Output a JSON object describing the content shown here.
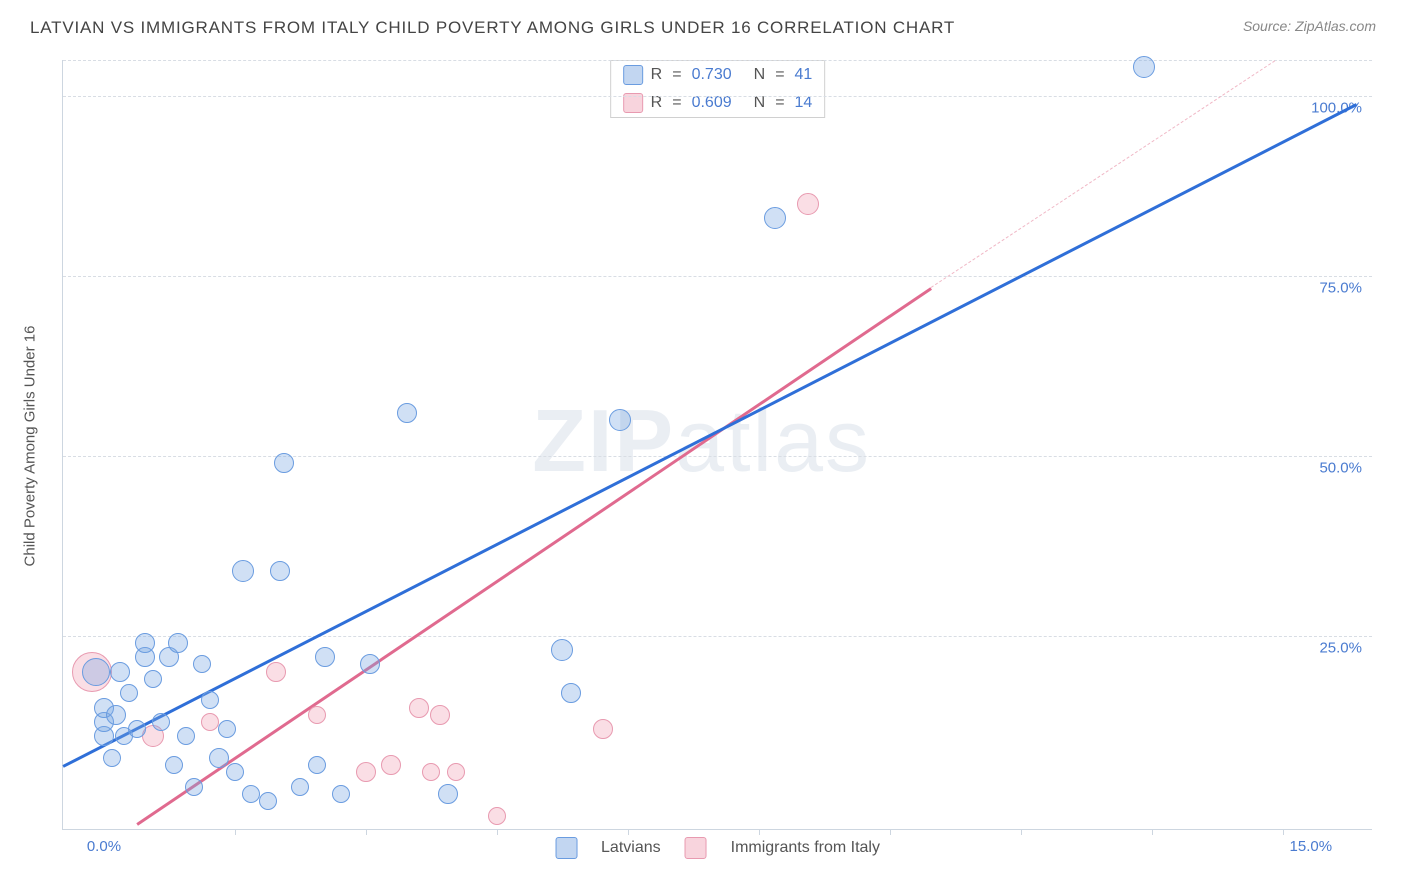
{
  "header": {
    "title": "LATVIAN VS IMMIGRANTS FROM ITALY CHILD POVERTY AMONG GIRLS UNDER 16 CORRELATION CHART",
    "source_prefix": "Source: ",
    "source_name": "ZipAtlas.com"
  },
  "chart": {
    "type": "scatter",
    "background_color": "#ffffff",
    "grid_color": "#d8dde4",
    "ylabel": "Child Poverty Among Girls Under 16",
    "ylabel_fontsize": 15,
    "label_color": "#555555",
    "tick_color": "#4a7bd0",
    "tick_fontsize": 15,
    "yticks": [
      {
        "value": 25.0,
        "label": "25.0%"
      },
      {
        "value": 50.0,
        "label": "50.0%"
      },
      {
        "value": 75.0,
        "label": "75.0%"
      },
      {
        "value": 100.0,
        "label": "100.0%"
      }
    ],
    "ylim": [
      -2,
      105
    ],
    "xticks": [
      {
        "value": 0.0,
        "label": "0.0%"
      },
      {
        "value": 15.0,
        "label": "15.0%"
      }
    ],
    "xtick_marks": [
      1.6,
      3.2,
      4.8,
      6.4,
      8.0,
      9.6,
      11.2,
      12.8,
      14.4
    ],
    "xlim": [
      -0.5,
      15.5
    ],
    "series": [
      {
        "name": "Latvians",
        "color_fill": "rgba(120,165,225,0.35)",
        "color_stroke": "#6a9ce0",
        "marker_radius_default": 9,
        "R": "0.730",
        "N": "41",
        "regression": {
          "x0": -0.5,
          "y0": 7,
          "x1": 15.3,
          "y1": 99,
          "color": "#2f6fd8",
          "width": 2.5,
          "dash": false
        },
        "points": [
          {
            "x": 0.0,
            "y": 11,
            "r": 10
          },
          {
            "x": 0.0,
            "y": 13,
            "r": 10
          },
          {
            "x": 0.0,
            "y": 15,
            "r": 10
          },
          {
            "x": 0.1,
            "y": 8,
            "r": 9
          },
          {
            "x": 0.15,
            "y": 14,
            "r": 10
          },
          {
            "x": 0.25,
            "y": 11,
            "r": 9
          },
          {
            "x": 0.2,
            "y": 20,
            "r": 10
          },
          {
            "x": -0.1,
            "y": 20,
            "r": 14
          },
          {
            "x": 0.3,
            "y": 17,
            "r": 9
          },
          {
            "x": 0.4,
            "y": 12,
            "r": 9
          },
          {
            "x": 0.5,
            "y": 22,
            "r": 10
          },
          {
            "x": 0.5,
            "y": 24,
            "r": 10
          },
          {
            "x": 0.6,
            "y": 19,
            "r": 9
          },
          {
            "x": 0.7,
            "y": 13,
            "r": 9
          },
          {
            "x": 0.8,
            "y": 22,
            "r": 10
          },
          {
            "x": 0.85,
            "y": 7,
            "r": 9
          },
          {
            "x": 0.9,
            "y": 24,
            "r": 10
          },
          {
            "x": 1.0,
            "y": 11,
            "r": 9
          },
          {
            "x": 1.1,
            "y": 4,
            "r": 9
          },
          {
            "x": 1.2,
            "y": 21,
            "r": 9
          },
          {
            "x": 1.3,
            "y": 16,
            "r": 9
          },
          {
            "x": 1.4,
            "y": 8,
            "r": 10
          },
          {
            "x": 1.5,
            "y": 12,
            "r": 9
          },
          {
            "x": 1.6,
            "y": 6,
            "r": 9
          },
          {
            "x": 1.7,
            "y": 34,
            "r": 11
          },
          {
            "x": 1.8,
            "y": 3,
            "r": 9
          },
          {
            "x": 2.0,
            "y": 2,
            "r": 9
          },
          {
            "x": 2.15,
            "y": 34,
            "r": 10
          },
          {
            "x": 2.2,
            "y": 49,
            "r": 10
          },
          {
            "x": 2.4,
            "y": 4,
            "r": 9
          },
          {
            "x": 2.6,
            "y": 7,
            "r": 9
          },
          {
            "x": 2.7,
            "y": 22,
            "r": 10
          },
          {
            "x": 2.9,
            "y": 3,
            "r": 9
          },
          {
            "x": 3.25,
            "y": 21,
            "r": 10
          },
          {
            "x": 3.7,
            "y": 56,
            "r": 10
          },
          {
            "x": 4.2,
            "y": 3,
            "r": 10
          },
          {
            "x": 5.6,
            "y": 23,
            "r": 11
          },
          {
            "x": 5.7,
            "y": 17,
            "r": 10
          },
          {
            "x": 6.3,
            "y": 55,
            "r": 11
          },
          {
            "x": 8.2,
            "y": 83,
            "r": 11
          },
          {
            "x": 12.7,
            "y": 104,
            "r": 11
          }
        ]
      },
      {
        "name": "Immigrants from Italy",
        "color_fill": "rgba(240,160,180,0.35)",
        "color_stroke": "#e89ab0",
        "marker_radius_default": 9,
        "R": "0.609",
        "N": "14",
        "regression_solid": {
          "x0": 0.4,
          "y0": -1,
          "x1": 10.1,
          "y1": 73.5,
          "color": "#e06a8f",
          "width": 2.5
        },
        "regression_dash": {
          "x0": 10.1,
          "y0": 73.5,
          "x1": 14.3,
          "y1": 105,
          "color": "#f0b8c6",
          "width": 1.5
        },
        "points": [
          {
            "x": -0.15,
            "y": 20,
            "r": 20
          },
          {
            "x": 0.6,
            "y": 11,
            "r": 11
          },
          {
            "x": 1.3,
            "y": 13,
            "r": 9
          },
          {
            "x": 2.1,
            "y": 20,
            "r": 10
          },
          {
            "x": 2.6,
            "y": 14,
            "r": 9
          },
          {
            "x": 3.2,
            "y": 6,
            "r": 10
          },
          {
            "x": 3.5,
            "y": 7,
            "r": 10
          },
          {
            "x": 3.85,
            "y": 15,
            "r": 10
          },
          {
            "x": 4.0,
            "y": 6,
            "r": 9
          },
          {
            "x": 4.1,
            "y": 14,
            "r": 10
          },
          {
            "x": 4.3,
            "y": 6,
            "r": 9
          },
          {
            "x": 4.8,
            "y": 0,
            "r": 9
          },
          {
            "x": 6.1,
            "y": 12,
            "r": 10
          },
          {
            "x": 8.6,
            "y": 85,
            "r": 11
          }
        ]
      }
    ],
    "legend_rn_labels": {
      "R_prefix": "R",
      "eq": "=",
      "N_prefix": "N"
    },
    "watermark": {
      "text_bold": "ZIP",
      "text_light": "atlas"
    }
  }
}
